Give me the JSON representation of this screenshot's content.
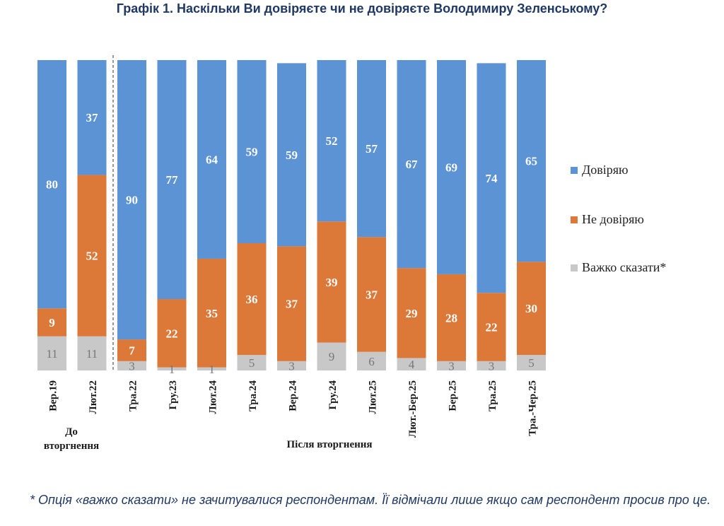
{
  "chart_data": {
    "type": "bar",
    "stacked": true,
    "title": "Графік 1. Наскільки Ви довіряєте чи не довіряєте Володимиру Зеленському?",
    "categories": [
      "Вер.19",
      "Лют.22",
      "Тра.22",
      "Гру.23",
      "Лют.24",
      "Тра.24",
      "Вер.24",
      "Гру.24",
      "Лют.25",
      "Лют.-Бер.25",
      "Бер.25",
      "Тра.25",
      "Тра.-Чер.25"
    ],
    "series": [
      {
        "name": "Важко сказати*",
        "color": "#c8c8c8",
        "values": [
          11,
          11,
          3,
          1,
          1,
          5,
          3,
          9,
          6,
          4,
          3,
          3,
          5
        ]
      },
      {
        "name": "Не довіряю",
        "color": "#dc7838",
        "values": [
          9,
          52,
          7,
          22,
          35,
          36,
          37,
          39,
          37,
          29,
          28,
          22,
          30
        ]
      },
      {
        "name": "Довіряю",
        "color": "#5b93d4",
        "values": [
          80,
          37,
          90,
          77,
          64,
          59,
          59,
          52,
          57,
          67,
          69,
          74,
          65
        ]
      }
    ],
    "ylim": [
      0,
      100
    ],
    "legend_position": "right",
    "legend_order": [
      "Довіряю",
      "Не довіряю",
      "Важко сказати*"
    ],
    "groups": [
      {
        "label": "До вторгнення",
        "categories": [
          "Вер.19",
          "Лют.22"
        ]
      },
      {
        "label": "Після вторгнення",
        "categories": [
          "Тра.22",
          "Гру.23",
          "Лют.24",
          "Тра.24",
          "Вер.24",
          "Гру.24",
          "Лют.25",
          "Лют.-Бер.25",
          "Бер.25",
          "Тра.25",
          "Тра.-Чер.25"
        ]
      }
    ],
    "label_colors": {
      "dark": "#ffffff",
      "light": "#777777"
    },
    "title_color": "#1f3864"
  },
  "footnote": "* Опція «важко сказати» не зачитувалися респондентам. Її відмічали лише якщо сам респондент просив про це."
}
